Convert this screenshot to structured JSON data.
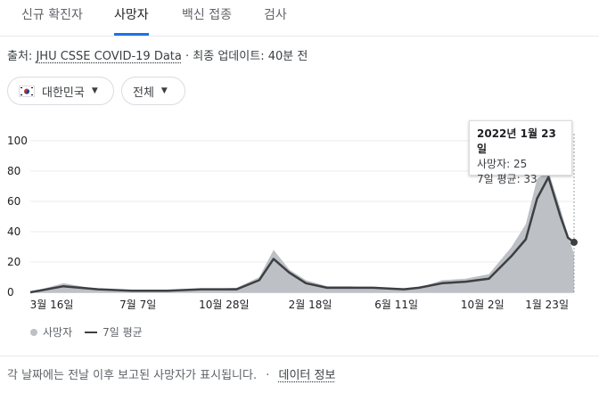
{
  "tabs": [
    {
      "label": "신규 확진자",
      "active": false
    },
    {
      "label": "사망자",
      "active": true
    },
    {
      "label": "백신 접종",
      "active": false
    },
    {
      "label": "검사",
      "active": false
    }
  ],
  "source": {
    "prefix": "출처:",
    "link": "JHU CSSE COVID-19 Data",
    "separator": "·",
    "updated": "최종 업데이트: 40분 전"
  },
  "filters": {
    "region": "대한민국",
    "range": "전체"
  },
  "tooltip": {
    "date": "2022년 1월 23일",
    "deaths": "사망자: 25",
    "avg": "7일 평균: 33"
  },
  "legend": {
    "daily": "사망자",
    "avg": "7일 평균"
  },
  "footer": {
    "note": "각 날짜에는 전날 이후 보고된 사망자가 표시됩니다.",
    "separator": "·",
    "link": "데이터 정보"
  },
  "colors": {
    "accent": "#1a73e8",
    "bars": "#bdc1c6",
    "avg_line": "#3c4043"
  },
  "chart_data": {
    "type": "area",
    "x": [
      "2020-02-01",
      "2020-03-16",
      "2020-05-01",
      "2020-06-15",
      "2020-08-01",
      "2020-09-15",
      "2020-11-01",
      "2020-12-01",
      "2020-12-20",
      "2021-01-10",
      "2021-02-01",
      "2021-03-01",
      "2021-04-01",
      "2021-05-01",
      "2021-06-11",
      "2021-07-01",
      "2021-08-01",
      "2021-09-01",
      "2021-10-02",
      "2021-11-01",
      "2021-11-20",
      "2021-12-05",
      "2021-12-20",
      "2022-01-05",
      "2022-01-15",
      "2022-01-23"
    ],
    "series": [
      {
        "name": "사망자",
        "values": [
          0,
          6,
          2,
          1,
          1,
          2,
          3,
          10,
          28,
          15,
          8,
          4,
          4,
          3,
          2,
          3,
          8,
          9,
          12,
          30,
          45,
          75,
          80,
          55,
          38,
          25
        ]
      },
      {
        "name": "7일 평균",
        "values": [
          0,
          4,
          2,
          1,
          1,
          2,
          2,
          8,
          22,
          13,
          6,
          3,
          3,
          3,
          2,
          3,
          6,
          7,
          9,
          24,
          35,
          62,
          76,
          50,
          36,
          33
        ]
      }
    ],
    "x_ticks": [
      "3월 16일",
      "7월 7일",
      "10월 28일",
      "2월 18일",
      "6월 11일",
      "10월 2일",
      "1월 23일"
    ],
    "y_ticks": [
      0,
      20,
      40,
      60,
      80,
      100
    ],
    "ylim": [
      0,
      100
    ],
    "highlight": {
      "x": "2022-01-23",
      "deaths": 25,
      "avg": 33
    }
  }
}
